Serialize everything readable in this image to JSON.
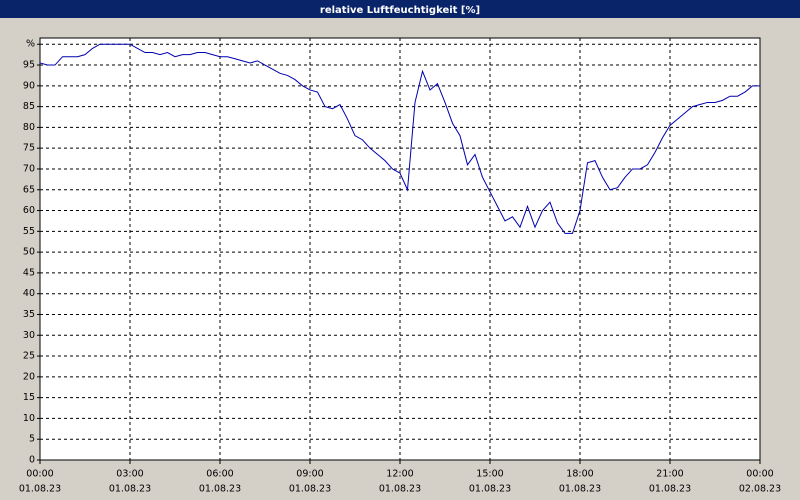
{
  "chart_data": {
    "type": "line",
    "title": "relative Luftfeuchtigkeit [%]",
    "x": [
      0,
      0.25,
      0.5,
      0.75,
      1,
      1.25,
      1.5,
      1.75,
      2,
      2.25,
      2.5,
      2.75,
      3,
      3.25,
      3.5,
      3.75,
      4,
      4.25,
      4.5,
      4.75,
      5,
      5.25,
      5.5,
      5.75,
      6,
      6.25,
      6.5,
      6.75,
      7,
      7.25,
      7.5,
      7.75,
      8,
      8.25,
      8.5,
      8.75,
      9,
      9.25,
      9.5,
      9.75,
      10,
      10.25,
      10.5,
      10.75,
      11,
      11.25,
      11.5,
      11.75,
      12,
      12.25,
      12.5,
      12.75,
      13,
      13.25,
      13.5,
      13.75,
      14,
      14.25,
      14.5,
      14.75,
      15,
      15.25,
      15.5,
      15.75,
      16,
      16.25,
      16.5,
      16.75,
      17,
      17.25,
      17.5,
      17.75,
      18,
      18.25,
      18.5,
      18.75,
      19,
      19.25,
      19.5,
      19.75,
      20,
      20.25,
      20.5,
      20.75,
      21,
      21.25,
      21.5,
      21.75,
      22,
      22.25,
      22.5,
      22.75,
      23,
      23.25,
      23.5,
      23.75,
      24
    ],
    "series": [
      {
        "name": "relative Luftfeuchtigkeit",
        "color": "#0000b0",
        "values": [
          95.5,
          95,
          95,
          97,
          97,
          97,
          97.5,
          99,
          100,
          100,
          100,
          100,
          100,
          99,
          98,
          98,
          97.5,
          98,
          97,
          97.5,
          97.5,
          98,
          98,
          97.5,
          97,
          97,
          96.5,
          96,
          95.5,
          96,
          95,
          94,
          93,
          92.5,
          91.5,
          90,
          89,
          88.5,
          85,
          84.5,
          85.5,
          82,
          78,
          77,
          75,
          73.5,
          72,
          70,
          69,
          65,
          86,
          93.5,
          89,
          90.5,
          86,
          81,
          78,
          71,
          73.5,
          68,
          64.5,
          61,
          57.5,
          58.5,
          56,
          61,
          56,
          60,
          62,
          57,
          54.5,
          54.5,
          60,
          71.5,
          72,
          68,
          65,
          65.5,
          68,
          70,
          70,
          71,
          74,
          77.5,
          80.5,
          82,
          83.5,
          85,
          85.5,
          86,
          86,
          86.5,
          87.5,
          87.5,
          88.5,
          90,
          90
        ]
      }
    ],
    "xlim": [
      0,
      24
    ],
    "xticks": [
      {
        "value": 0,
        "label": "00:00"
      },
      {
        "value": 3,
        "label": "03:00"
      },
      {
        "value": 6,
        "label": "06:00"
      },
      {
        "value": 9,
        "label": "09:00"
      },
      {
        "value": 12,
        "label": "12:00"
      },
      {
        "value": 15,
        "label": "15:00"
      },
      {
        "value": 18,
        "label": "18:00"
      },
      {
        "value": 21,
        "label": "21:00"
      },
      {
        "value": 24,
        "label": "00:00"
      }
    ],
    "xtick_dates": [
      "01.08.23",
      "01.08.23",
      "01.08.23",
      "01.08.23",
      "01.08.23",
      "01.08.23",
      "01.08.23",
      "01.08.23",
      "02.08.23"
    ],
    "ylim": [
      0,
      101.5
    ],
    "yticks": [
      0,
      5,
      10,
      15,
      20,
      25,
      30,
      35,
      40,
      45,
      50,
      55,
      60,
      65,
      70,
      75,
      80,
      85,
      90,
      95,
      {
        "value": 100,
        "label": "%"
      }
    ],
    "grid": true
  }
}
